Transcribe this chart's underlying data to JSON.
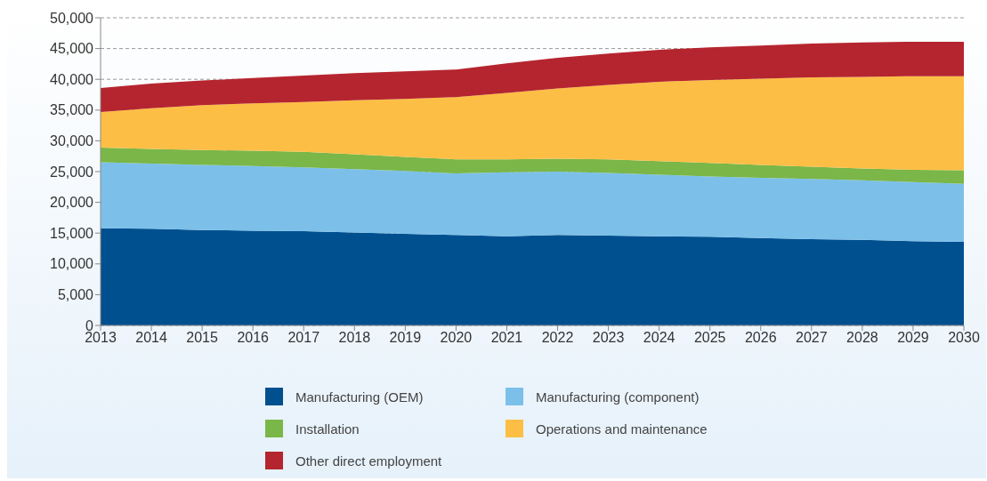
{
  "chart_data": {
    "type": "area",
    "stacked": true,
    "x": [
      2013,
      2014,
      2015,
      2016,
      2017,
      2018,
      2019,
      2020,
      2021,
      2022,
      2023,
      2024,
      2025,
      2026,
      2027,
      2028,
      2029,
      2030
    ],
    "xlim": [
      2013,
      2030
    ],
    "xticks": [
      2013,
      2014,
      2015,
      2016,
      2017,
      2018,
      2019,
      2020,
      2021,
      2022,
      2023,
      2024,
      2025,
      2026,
      2027,
      2028,
      2029,
      2030
    ],
    "ylim": [
      0,
      50000
    ],
    "yticks": [
      {
        "value": 0,
        "label": "0"
      },
      {
        "value": 5000,
        "label": "5,000"
      },
      {
        "value": 10000,
        "label": "10,000"
      },
      {
        "value": 15000,
        "label": "15,000"
      },
      {
        "value": 20000,
        "label": "20,000"
      },
      {
        "value": 25000,
        "label": "25,000"
      },
      {
        "value": 30000,
        "label": "30,000"
      },
      {
        "value": 35000,
        "label": "35,000"
      },
      {
        "value": 40000,
        "label": "40,000"
      },
      {
        "value": 45000,
        "label": "45,000"
      },
      {
        "value": 50000,
        "label": "50,000"
      }
    ],
    "grid": "y",
    "legend": "bottom",
    "series": [
      {
        "name": "Manufacturing (OEM)",
        "color": "#00508f",
        "values": [
          15800,
          15700,
          15500,
          15400,
          15300,
          15100,
          14900,
          14700,
          14500,
          14700,
          14600,
          14500,
          14400,
          14200,
          14000,
          13900,
          13700,
          13600
        ]
      },
      {
        "name": "Manufacturing (component)",
        "color": "#7cc0ea",
        "values": [
          10700,
          10600,
          10600,
          10500,
          10400,
          10300,
          10200,
          10000,
          10400,
          10300,
          10200,
          10000,
          9800,
          9800,
          9800,
          9700,
          9600,
          9400
        ]
      },
      {
        "name": "Installation",
        "color": "#7ab648",
        "values": [
          2400,
          2400,
          2400,
          2500,
          2500,
          2400,
          2300,
          2300,
          2100,
          2100,
          2200,
          2200,
          2200,
          2100,
          2000,
          1900,
          2000,
          2200
        ]
      },
      {
        "name": "Operations and maintenance",
        "color": "#fdbe45",
        "values": [
          5800,
          6600,
          7300,
          7700,
          8100,
          8800,
          9400,
          10100,
          10800,
          11400,
          12100,
          12900,
          13500,
          14000,
          14500,
          14900,
          15200,
          15300
        ]
      },
      {
        "name": "Other direct employment",
        "color": "#b5252f",
        "values": [
          3900,
          4000,
          4000,
          4100,
          4300,
          4400,
          4500,
          4500,
          4800,
          5000,
          5100,
          5200,
          5300,
          5400,
          5500,
          5600,
          5600,
          5600
        ]
      }
    ]
  }
}
